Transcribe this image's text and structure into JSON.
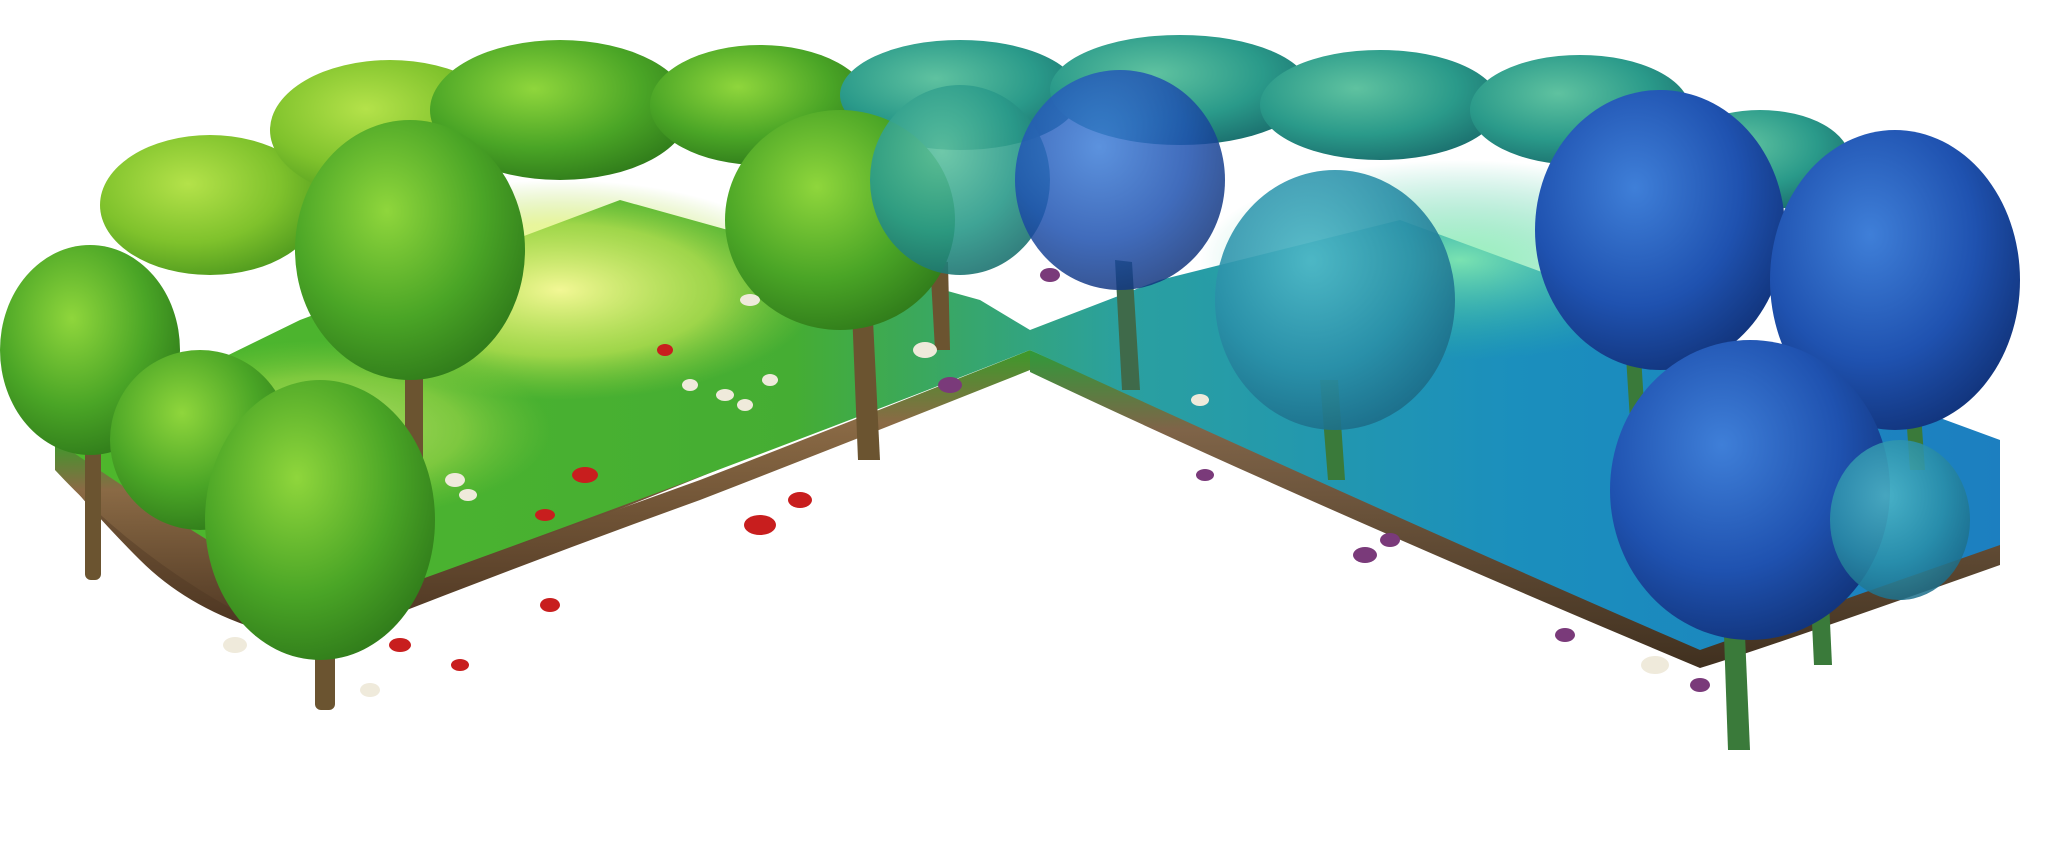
{
  "scene": {
    "name": "isometric-forest-tile",
    "colors": {
      "background": "#ffffff",
      "grass_green": "#3fae2a",
      "grass_light": "#8ccf3a",
      "grass_blue": "#1a86b8",
      "grass_teal": "#1aa3a8",
      "soil": "#7a5a3a",
      "soil_dark": "#4e3722",
      "canopy_green": "#3e9a22",
      "canopy_lime": "#7bc12a",
      "canopy_teal": "#1f8f8a",
      "canopy_blue": "#1d4fa8",
      "canopy_navy": "#123f95",
      "light_glow": "#f2f56a",
      "mushroom_red": "#c81e1e",
      "mushroom_white": "#efeadb",
      "mushroom_purple": "#7a3a7a",
      "trunk": "#6b5430"
    },
    "icons": [
      "tree-icon",
      "mushroom-icon"
    ]
  }
}
